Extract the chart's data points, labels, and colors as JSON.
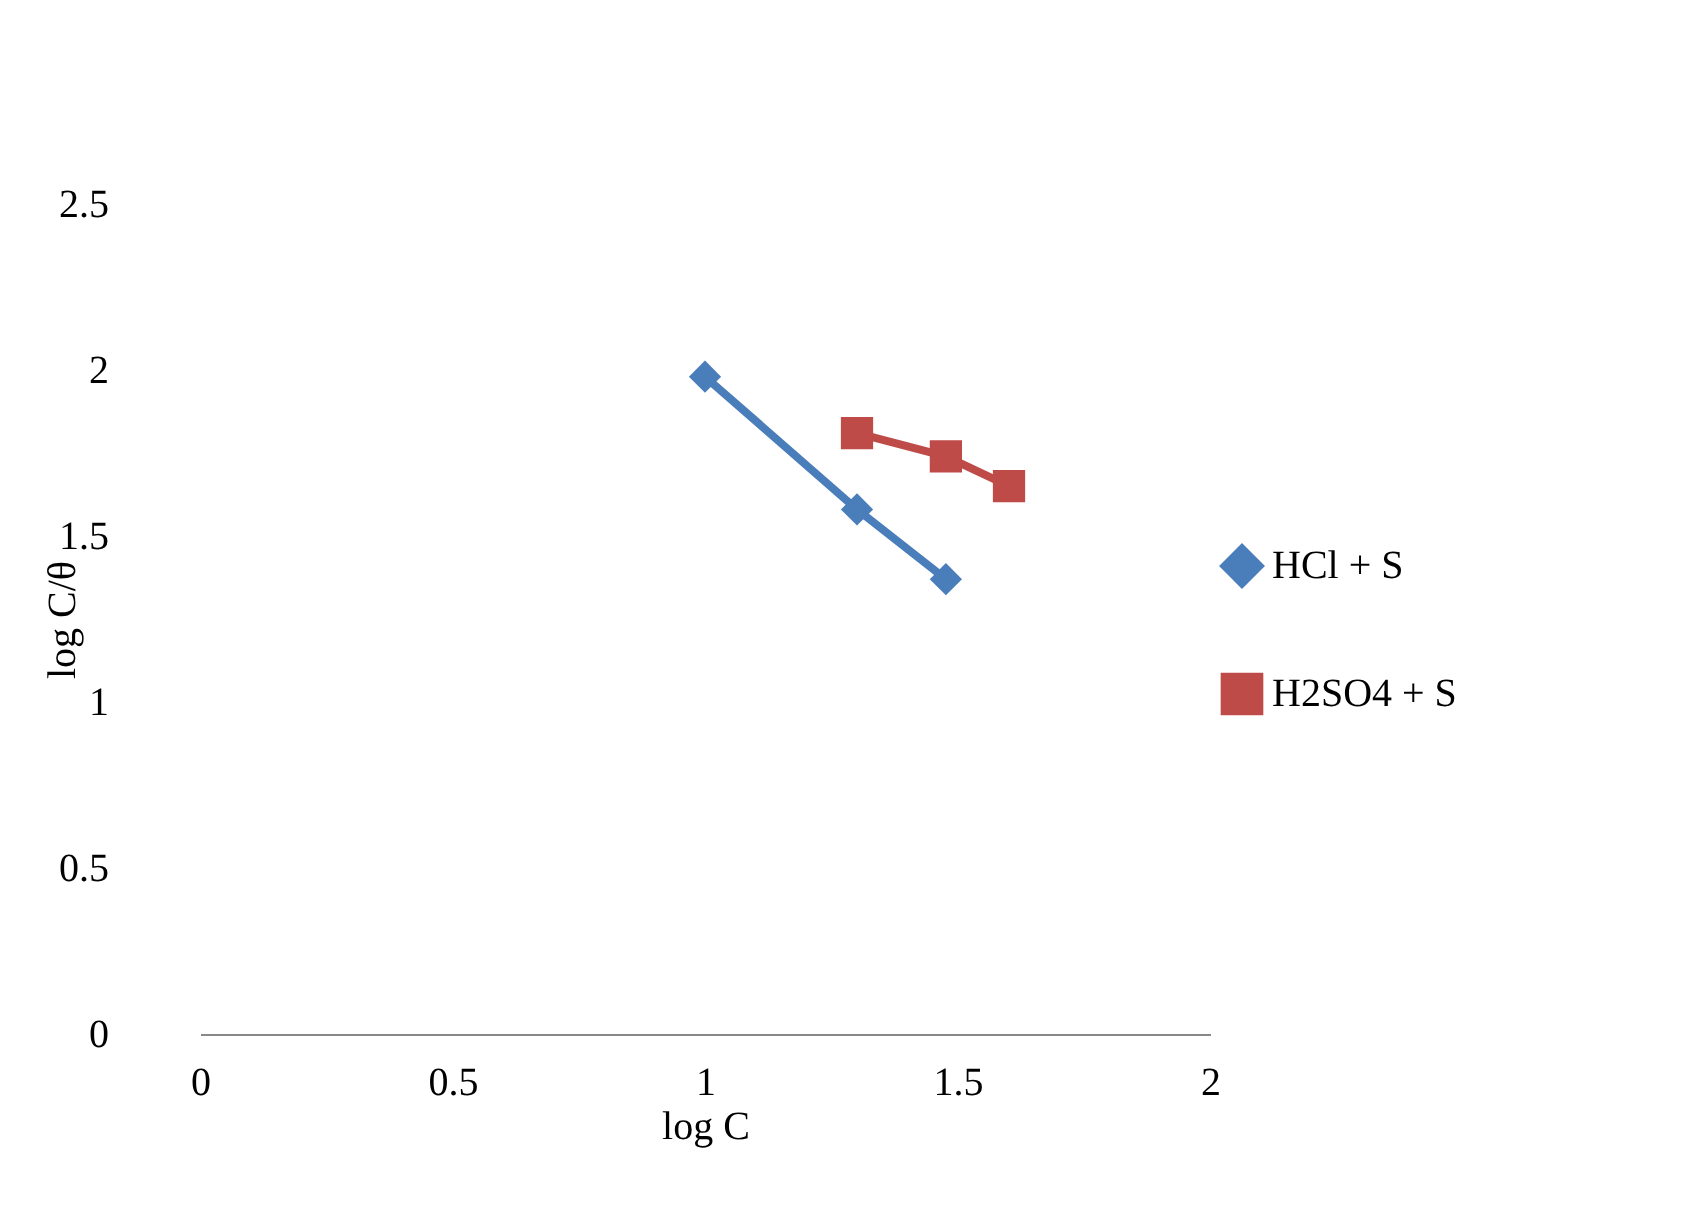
{
  "chart_data": {
    "type": "line",
    "xlabel": "log C",
    "ylabel": "log C/θ",
    "series": [
      {
        "name": "HCl + S",
        "color": "#4a7ebb",
        "marker": "diamond",
        "x": [
          1.0,
          1.301,
          1.477
        ],
        "values": [
          1.98,
          1.58,
          1.37
        ]
      },
      {
        "name": "H2SO4 + S",
        "color": "#be4b48",
        "marker": "square",
        "x": [
          1.301,
          1.477,
          1.602
        ],
        "values": [
          1.81,
          1.74,
          1.65
        ]
      }
    ],
    "xlim": [
      0,
      2
    ],
    "xticks": [
      0,
      0.5,
      1,
      1.5,
      2
    ],
    "ylim": [
      0,
      2.5
    ],
    "yticks": [
      0,
      0.5,
      1,
      1.5,
      2,
      2.5
    ],
    "grid": false,
    "legend": "right",
    "line_style": "solid"
  }
}
